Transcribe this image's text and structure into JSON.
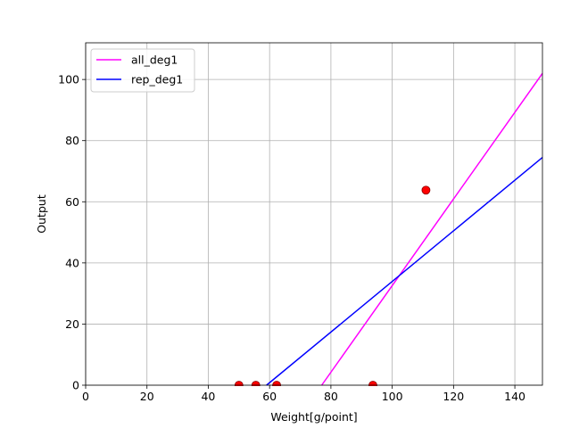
{
  "chart_data": {
    "type": "scatter",
    "title": "",
    "xlabel": "Weight[g/point]",
    "ylabel": "Output",
    "xlim": [
      0,
      149
    ],
    "ylim": [
      0,
      112
    ],
    "xticks": [
      0,
      20,
      40,
      60,
      80,
      100,
      120,
      140
    ],
    "yticks": [
      0,
      20,
      40,
      60,
      80,
      100
    ],
    "grid": true,
    "legend_position": "top-left",
    "points": {
      "color": "#ff0000",
      "edge_color": "#8b0000",
      "x": [
        50,
        55.5,
        62.3,
        93.7,
        111
      ],
      "y": [
        0,
        0,
        0,
        0,
        63.8
      ]
    },
    "series": [
      {
        "name": "all_deg1",
        "color": "#ff00ff",
        "type": "line",
        "x": [
          77,
          149
        ],
        "y": [
          0,
          102
        ]
      },
      {
        "name": "rep_deg1",
        "color": "#0000ff",
        "type": "line",
        "x": [
          59,
          149
        ],
        "y": [
          0,
          74.5
        ]
      }
    ]
  }
}
